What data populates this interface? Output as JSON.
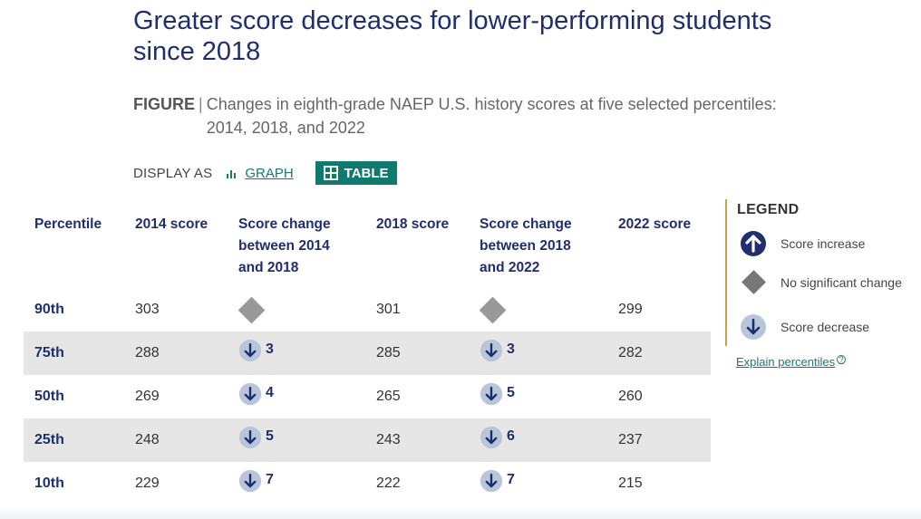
{
  "title": "Greater score decreases for lower-performing students since 2018",
  "caption": {
    "label": "FIGURE",
    "separator": "|",
    "text": "Changes in eighth-grade NAEP U.S. history scores at five selected percentiles: 2014, 2018, and 2022"
  },
  "display": {
    "label": "DISPLAY AS",
    "graph_label": "GRAPH",
    "table_label": "TABLE"
  },
  "table": {
    "headers": {
      "percentile": "Percentile",
      "score2014": "2014 score",
      "change1": "Score change between 2014 and 2018",
      "score2018": "2018 score",
      "change2": "Score change between 2018 and 2022",
      "score2022": "2022 score"
    },
    "rows": [
      {
        "percentile": "90th",
        "score2014": "303",
        "change1": {
          "type": "none",
          "value": ""
        },
        "score2018": "301",
        "change2": {
          "type": "none",
          "value": ""
        },
        "score2022": "299"
      },
      {
        "percentile": "75th",
        "score2014": "288",
        "change1": {
          "type": "decrease",
          "value": "3"
        },
        "score2018": "285",
        "change2": {
          "type": "decrease",
          "value": "3"
        },
        "score2022": "282"
      },
      {
        "percentile": "50th",
        "score2014": "269",
        "change1": {
          "type": "decrease",
          "value": "4"
        },
        "score2018": "265",
        "change2": {
          "type": "decrease",
          "value": "5"
        },
        "score2022": "260"
      },
      {
        "percentile": "25th",
        "score2014": "248",
        "change1": {
          "type": "decrease",
          "value": "5"
        },
        "score2018": "243",
        "change2": {
          "type": "decrease",
          "value": "6"
        },
        "score2022": "237"
      },
      {
        "percentile": "10th",
        "score2014": "229",
        "change1": {
          "type": "decrease",
          "value": "7"
        },
        "score2018": "222",
        "change2": {
          "type": "decrease",
          "value": "7"
        },
        "score2022": "215"
      }
    ]
  },
  "legend": {
    "title": "LEGEND",
    "items": [
      {
        "icon": "arrow-up-icon",
        "label": "Score increase"
      },
      {
        "icon": "diamond-icon",
        "label": "No significant change"
      },
      {
        "icon": "arrow-down-icon",
        "label": "Score decrease"
      }
    ],
    "explain_link": "Explain percentiles"
  },
  "colors": {
    "navy": "#1f2f6e",
    "teal": "#0f7a6d",
    "decrease_circle": "#b9c6d9",
    "diamond_gray": "#999999",
    "legend_border": "#c8a045"
  }
}
